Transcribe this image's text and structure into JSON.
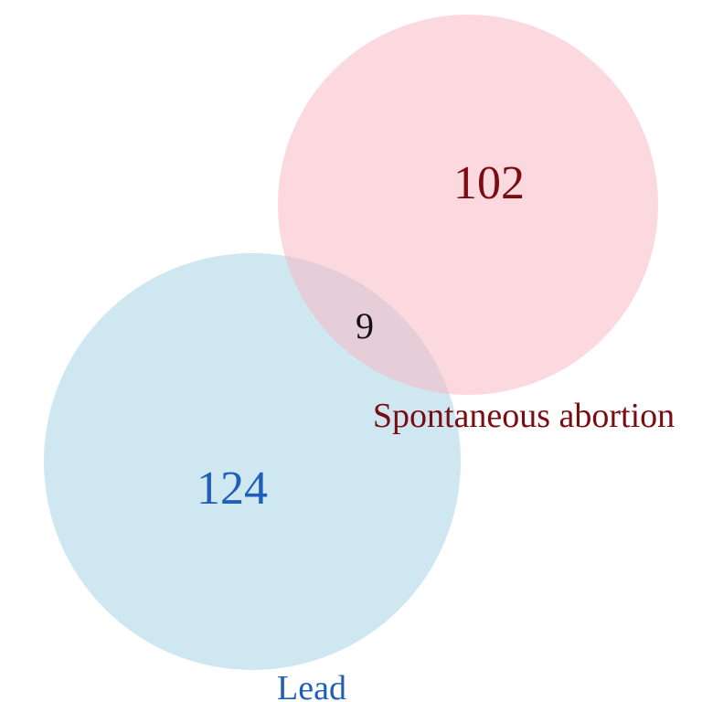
{
  "venn": {
    "sets": [
      {
        "label": "Spontaneous abortion",
        "only_count": "102",
        "fill": "#f8b9c5",
        "text_color": "#7a0c12"
      },
      {
        "label": "Lead",
        "only_count": "124",
        "fill": "#a8d3e3",
        "text_color": "#1f5fb9"
      }
    ],
    "intersection": {
      "count": "9",
      "text_color": "#111111"
    }
  }
}
